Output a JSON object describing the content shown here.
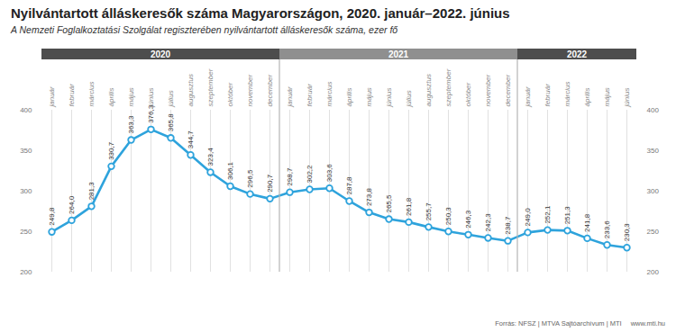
{
  "chart_data": {
    "type": "line",
    "title": "Nyilvántartott álláskeresők száma Magyarországon, 2020. január–2022. június",
    "subtitle": "A Nemzeti Foglalkoztatási Szolgálat regiszterében nyilvántartott álláskeresők száma, ezer fő",
    "source": "Forrás: NFSZ | MTVA Sajtóarchívum | MTI",
    "source_url": "www.mti.hu",
    "categories": [
      "január",
      "február",
      "március",
      "április",
      "május",
      "június",
      "július",
      "augusztus",
      "szeptember",
      "október",
      "november",
      "december",
      "január",
      "február",
      "március",
      "április",
      "május",
      "június",
      "július",
      "augusztus",
      "szeptember",
      "október",
      "november",
      "december",
      "január",
      "február",
      "március",
      "április",
      "május",
      "június"
    ],
    "years": [
      "2020",
      "2020",
      "2020",
      "2020",
      "2020",
      "2020",
      "2020",
      "2020",
      "2020",
      "2020",
      "2020",
      "2020",
      "2021",
      "2021",
      "2021",
      "2021",
      "2021",
      "2021",
      "2021",
      "2021",
      "2021",
      "2021",
      "2021",
      "2021",
      "2022",
      "2022",
      "2022",
      "2022",
      "2022",
      "2022"
    ],
    "values": [
      249.8,
      264.0,
      281.3,
      330.7,
      363.3,
      376.3,
      365.8,
      344.7,
      323.4,
      306.1,
      296.5,
      290.7,
      298.7,
      302.2,
      303.6,
      287.8,
      273.8,
      265.5,
      261.8,
      255.7,
      250.3,
      246.3,
      242.3,
      238.7,
      249.0,
      252.1,
      251.3,
      241.8,
      233.6,
      230.3
    ],
    "value_labels": [
      "249,8",
      "264,0",
      "281,3",
      "330,7",
      "363,3",
      "376,3",
      "365,8",
      "344,7",
      "323,4",
      "306,1",
      "296,5",
      "290,7",
      "298,7",
      "302,2",
      "303,6",
      "287,8",
      "273,8",
      "265,5",
      "261,8",
      "255,7",
      "250,3",
      "246,3",
      "242,3",
      "238,7",
      "249,0",
      "252,1",
      "251,3",
      "241,8",
      "233,6",
      "230,3"
    ],
    "color": "#2ea3dc",
    "marker": "circle",
    "line_style": "solid",
    "data_labels": true,
    "grid": "x",
    "ylim": [
      200,
      400
    ],
    "yticks": [
      200,
      250,
      300,
      350,
      400
    ]
  }
}
